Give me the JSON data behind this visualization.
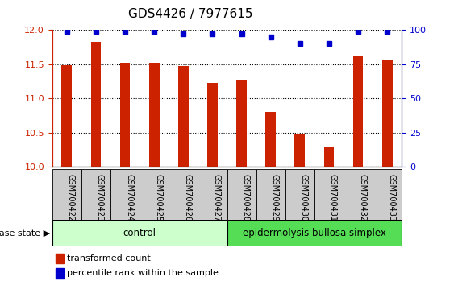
{
  "title": "GDS4426 / 7977615",
  "samples": [
    "GSM700422",
    "GSM700423",
    "GSM700424",
    "GSM700425",
    "GSM700426",
    "GSM700427",
    "GSM700428",
    "GSM700429",
    "GSM700430",
    "GSM700431",
    "GSM700432",
    "GSM700433"
  ],
  "bar_values": [
    11.48,
    11.83,
    11.52,
    11.52,
    11.47,
    11.23,
    11.27,
    10.8,
    10.47,
    10.3,
    11.62,
    11.57
  ],
  "percentile_values": [
    99,
    99,
    99,
    99,
    97,
    97,
    97,
    95,
    90,
    90,
    99,
    99
  ],
  "bar_color": "#cc2200",
  "dot_color": "#0000cc",
  "ylim_left": [
    10,
    12
  ],
  "ylim_right": [
    0,
    100
  ],
  "yticks_left": [
    10,
    10.5,
    11,
    11.5,
    12
  ],
  "yticks_right": [
    0,
    25,
    50,
    75,
    100
  ],
  "control_samples": 6,
  "control_label": "control",
  "disease_label": "epidermolysis bullosa simplex",
  "disease_state_label": "disease state",
  "legend_bar_label": "transformed count",
  "legend_dot_label": "percentile rank within the sample",
  "bg_color": "#ffffff",
  "control_bg": "#ccffcc",
  "disease_bg": "#55dd55",
  "tick_bg": "#cccccc",
  "bar_width": 0.35,
  "title_fontsize": 11,
  "tick_fontsize": 7,
  "label_fontsize": 8.5,
  "legend_fontsize": 8
}
